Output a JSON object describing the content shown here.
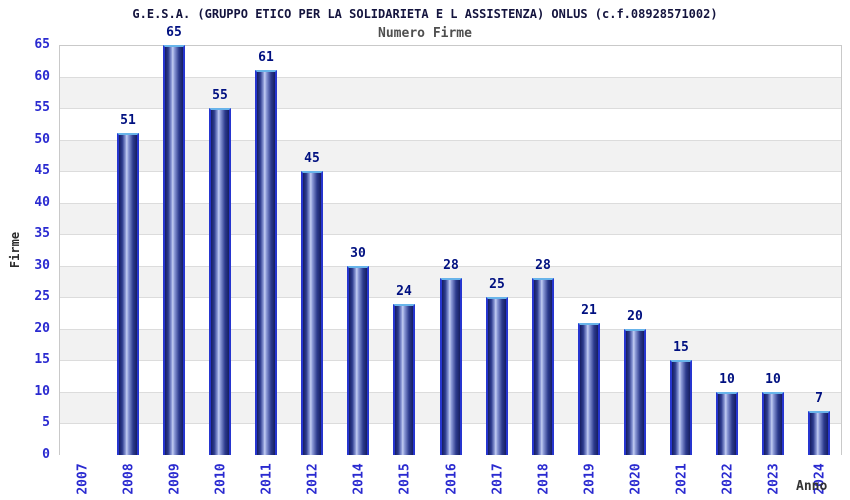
{
  "header": {
    "title": "G.E.S.A. (GRUPPO ETICO PER LA SOLIDARIETA E L ASSISTENZA) ONLUS (c.f.08928571002)",
    "subtitle": "Numero Firme"
  },
  "chart_data": {
    "type": "bar",
    "title": "G.E.S.A. (GRUPPO ETICO PER LA SOLIDARIETA E L ASSISTENZA) ONLUS (c.f.08928571002)",
    "subtitle": "Numero Firme",
    "xlabel": "Anno",
    "ylabel": "Firme",
    "categories": [
      "2007",
      "2008",
      "2009",
      "2010",
      "2011",
      "2012",
      "2014",
      "2015",
      "2016",
      "2017",
      "2018",
      "2019",
      "2020",
      "2021",
      "2022",
      "2023",
      "2024"
    ],
    "values": [
      0,
      51,
      65,
      55,
      61,
      45,
      30,
      24,
      28,
      25,
      28,
      21,
      20,
      15,
      10,
      10,
      7
    ],
    "value_labels_shown": [
      "",
      "51",
      "65",
      "55",
      "61",
      "45",
      "30",
      "24",
      "28",
      "25",
      "28",
      "21",
      "20",
      "15",
      "10",
      "10",
      "7"
    ],
    "ylim": [
      0,
      65
    ],
    "yticks": [
      0,
      5,
      10,
      15,
      20,
      25,
      30,
      35,
      40,
      45,
      50,
      55,
      60,
      65
    ],
    "grid": "horizontal alternating bands every 5 units",
    "legend": "none"
  },
  "colors": {
    "bar_border": "#2635cf",
    "bar_dark": "#161e61",
    "bar_highlight": "#c4cef2",
    "bar_top_cap": "#68b4ea",
    "value_label": "#001080",
    "tick_label": "#2a2ad0",
    "title": "#14143e",
    "subtitle": "#4f4f4f",
    "band_white": "#ffffff",
    "band_gray": "#f2f2f2",
    "grid_line": "#dcdcdc",
    "plot_border": "#c9c9c9"
  }
}
